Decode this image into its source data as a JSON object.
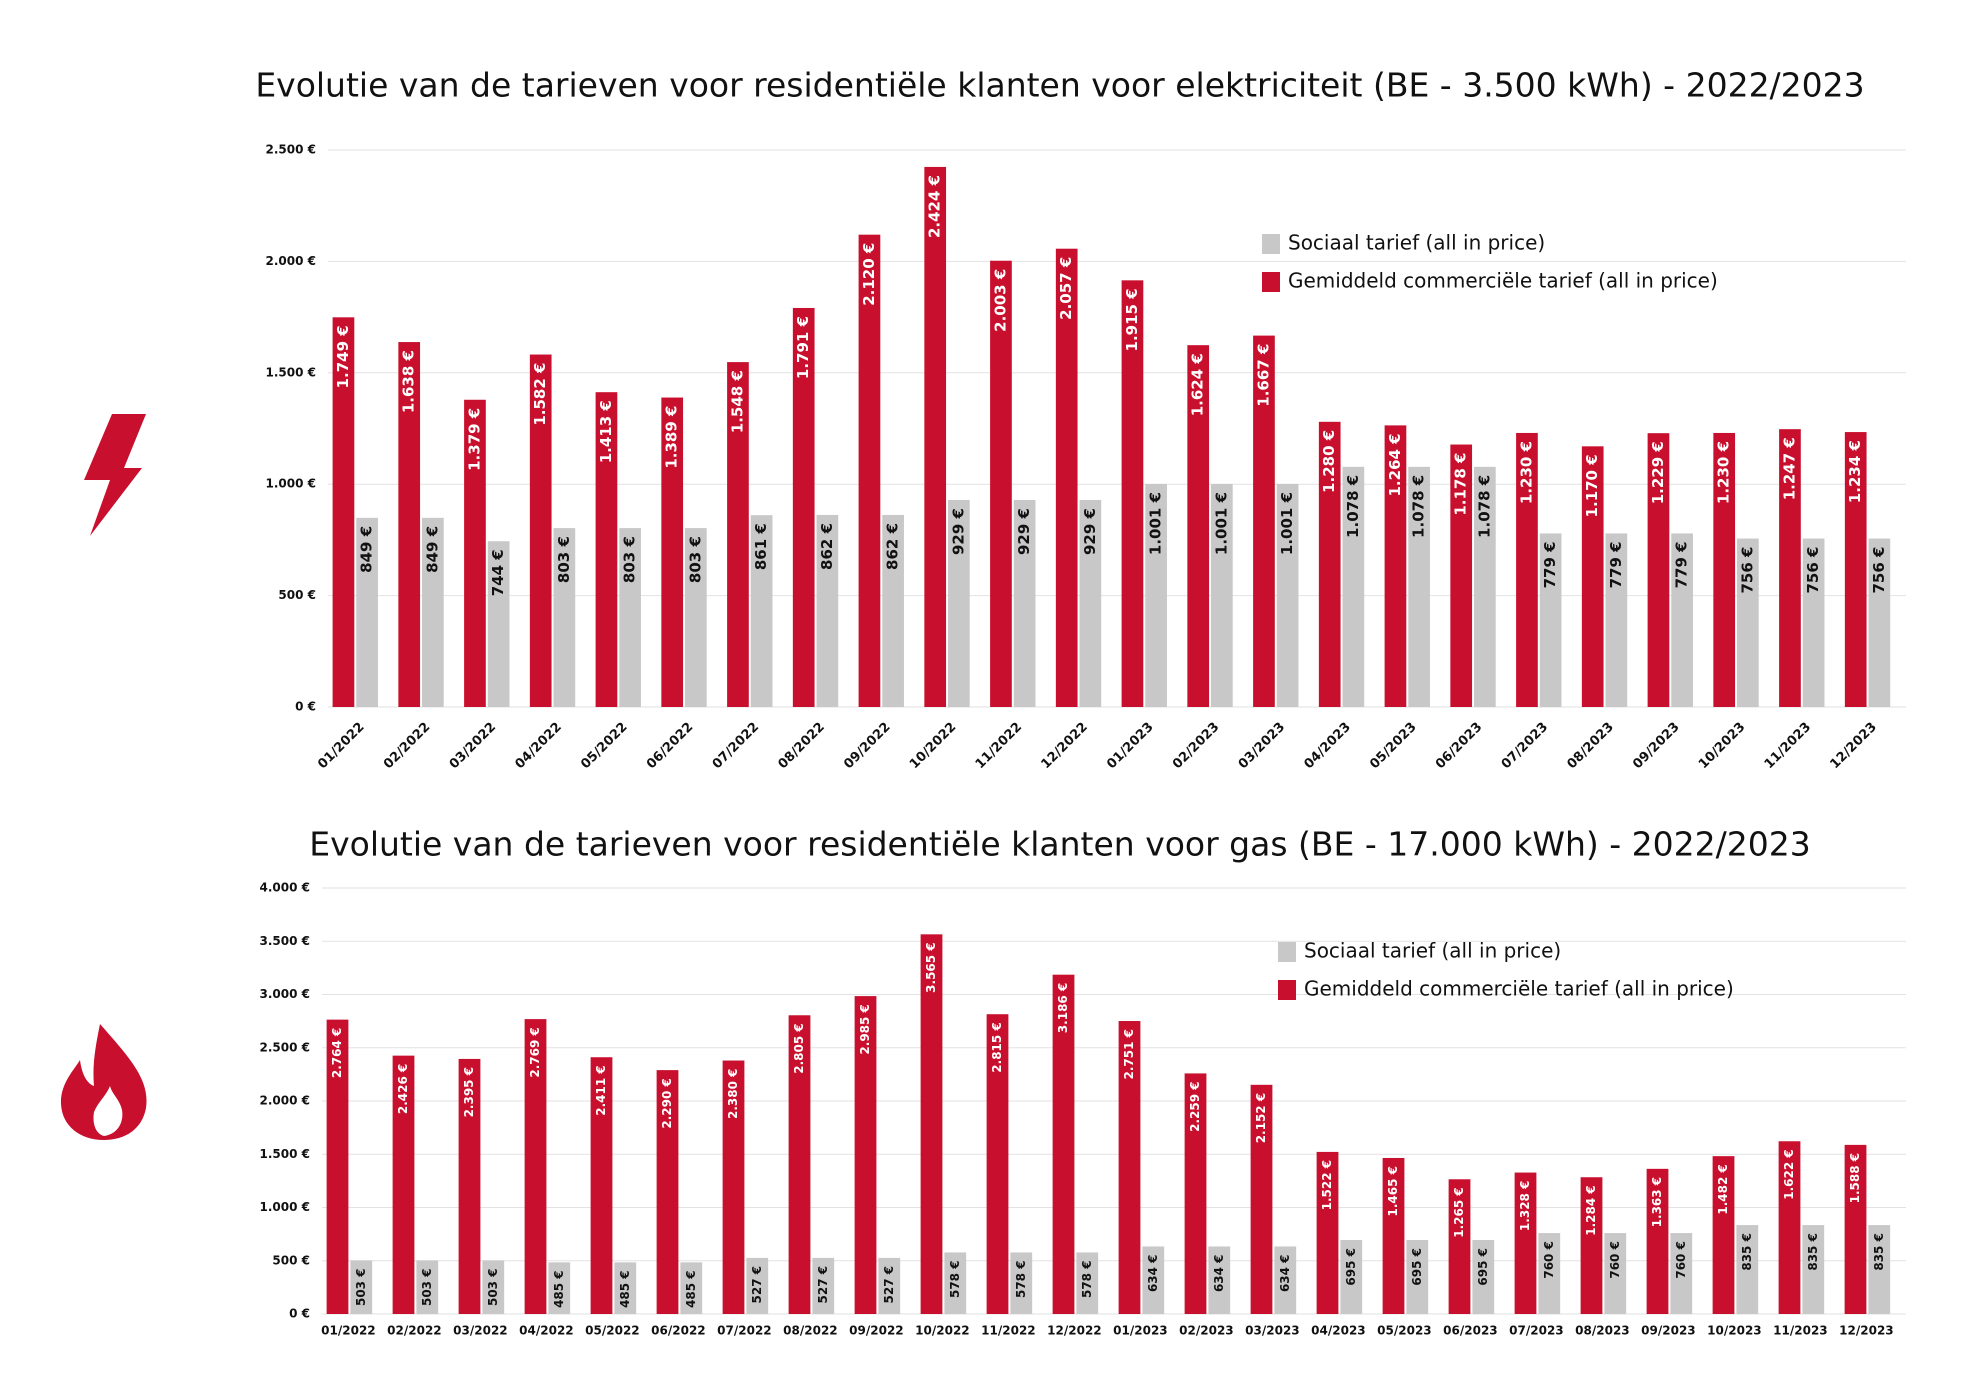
{
  "chart_data": [
    {
      "type": "bar",
      "title": "Evolutie van de tarieven voor residentiële klanten voor elektriciteit (BE - 3.500 kWh) - 2022/2023",
      "categories": [
        "01/2022",
        "02/2022",
        "03/2022",
        "04/2022",
        "05/2022",
        "06/2022",
        "07/2022",
        "08/2022",
        "09/2022",
        "10/2022",
        "11/2022",
        "12/2022",
        "01/2023",
        "02/2023",
        "03/2023",
        "04/2023",
        "05/2023",
        "06/2023",
        "07/2023",
        "08/2023",
        "09/2023",
        "10/2023",
        "11/2023",
        "12/2023"
      ],
      "series": [
        {
          "name": "Sociaal tarief (all in price)",
          "color": "#c8c8c8",
          "values": [
            849,
            849,
            744,
            803,
            803,
            803,
            861,
            862,
            862,
            929,
            929,
            929,
            1001,
            1001,
            1001,
            1078,
            1078,
            1078,
            779,
            779,
            779,
            756,
            756,
            756
          ],
          "value_labels": [
            "849 €",
            "849 €",
            "744 €",
            "803 €",
            "803 €",
            "803 €",
            "861 €",
            "862 €",
            "862 €",
            "929 €",
            "929 €",
            "929 €",
            "1.001 €",
            "1.001 €",
            "1.001 €",
            "1.078 €",
            "1.078 €",
            "1.078 €",
            "779 €",
            "779 €",
            "779 €",
            "756 €",
            "756 €",
            "756 €"
          ]
        },
        {
          "name": "Gemiddeld commerciële tarief (all in price)",
          "color": "#c8102e",
          "values": [
            1749,
            1638,
            1379,
            1582,
            1413,
            1389,
            1548,
            1791,
            2120,
            2424,
            2003,
            2057,
            1915,
            1624,
            1667,
            1280,
            1264,
            1178,
            1230,
            1170,
            1229,
            1230,
            1247,
            1234
          ],
          "value_labels": [
            "1.749 €",
            "1.638 €",
            "1.379 €",
            "1.582 €",
            "1.413 €",
            "1.389 €",
            "1.548 €",
            "1.791 €",
            "2.120 €",
            "2.424 €",
            "2.003 €",
            "2.057 €",
            "1.915 €",
            "1.624 €",
            "1.667 €",
            "1.280 €",
            "1.264 €",
            "1.178 €",
            "1.230 €",
            "1.170 €",
            "1.229 €",
            "1.230 €",
            "1.247 €",
            "1.234 €"
          ]
        }
      ],
      "ylim": [
        0,
        2500
      ],
      "yticks": [
        {
          "value": 0,
          "label": "0 €"
        },
        {
          "value": 500,
          "label": "500 €"
        },
        {
          "value": 1000,
          "label": "1.000 €"
        },
        {
          "value": 1500,
          "label": "1.500 €"
        },
        {
          "value": 2000,
          "label": "2.000 €"
        },
        {
          "value": 2500,
          "label": "2.500 €"
        }
      ],
      "grid": true
    },
    {
      "type": "bar",
      "title": "Evolutie van de tarieven voor residentiële klanten voor gas (BE - 17.000 kWh) - 2022/2023",
      "categories": [
        "01/2022",
        "02/2022",
        "03/2022",
        "04/2022",
        "05/2022",
        "06/2022",
        "07/2022",
        "08/2022",
        "09/2022",
        "10/2022",
        "11/2022",
        "12/2022",
        "01/2023",
        "02/2023",
        "03/2023",
        "04/2023",
        "05/2023",
        "06/2023",
        "07/2023",
        "08/2023",
        "09/2023",
        "10/2023",
        "11/2023",
        "12/2023"
      ],
      "series": [
        {
          "name": "Sociaal tarief (all in price)",
          "color": "#c8c8c8",
          "values": [
            503,
            503,
            503,
            485,
            485,
            485,
            527,
            527,
            527,
            578,
            578,
            578,
            634,
            634,
            634,
            695,
            695,
            695,
            760,
            760,
            760,
            835,
            835,
            835
          ],
          "value_labels": [
            "503 €",
            "503 €",
            "503 €",
            "485 €",
            "485 €",
            "485 €",
            "527 €",
            "527 €",
            "527 €",
            "578 €",
            "578 €",
            "578 €",
            "634 €",
            "634 €",
            "634 €",
            "695 €",
            "695 €",
            "695 €",
            "760 €",
            "760 €",
            "760 €",
            "835 €",
            "835 €",
            "835 €"
          ]
        },
        {
          "name": "Gemiddeld commerciële tarief (all in price)",
          "color": "#c8102e",
          "values": [
            2764,
            2426,
            2395,
            2769,
            2411,
            2290,
            2380,
            2805,
            2985,
            3565,
            2815,
            3186,
            2751,
            2259,
            2152,
            1522,
            1465,
            1265,
            1328,
            1284,
            1363,
            1482,
            1622,
            1588
          ],
          "value_labels": [
            "2.764 €",
            "2.426 €",
            "2.395 €",
            "2.769 €",
            "2.411 €",
            "2.290 €",
            "2.380 €",
            "2.805 €",
            "2.985 €",
            "3.565 €",
            "2.815 €",
            "3.186 €",
            "2.751 €",
            "2.259 €",
            "2.152 €",
            "1.522 €",
            "1.465 €",
            "1.265 €",
            "1.328 €",
            "1.284 €",
            "1.363 €",
            "1.482 €",
            "1.622 €",
            "1.588 €"
          ]
        }
      ],
      "ylim": [
        0,
        4000
      ],
      "yticks": [
        {
          "value": 0,
          "label": "0 €"
        },
        {
          "value": 500,
          "label": "500 €"
        },
        {
          "value": 1000,
          "label": "1.000 €"
        },
        {
          "value": 1500,
          "label": "1.500 €"
        },
        {
          "value": 2000,
          "label": "2.000 €"
        },
        {
          "value": 2500,
          "label": "2.500 €"
        },
        {
          "value": 3000,
          "label": "3.000 €"
        },
        {
          "value": 3500,
          "label": "3.500 €"
        },
        {
          "value": 4000,
          "label": "4.000 €"
        }
      ],
      "grid": true
    }
  ]
}
